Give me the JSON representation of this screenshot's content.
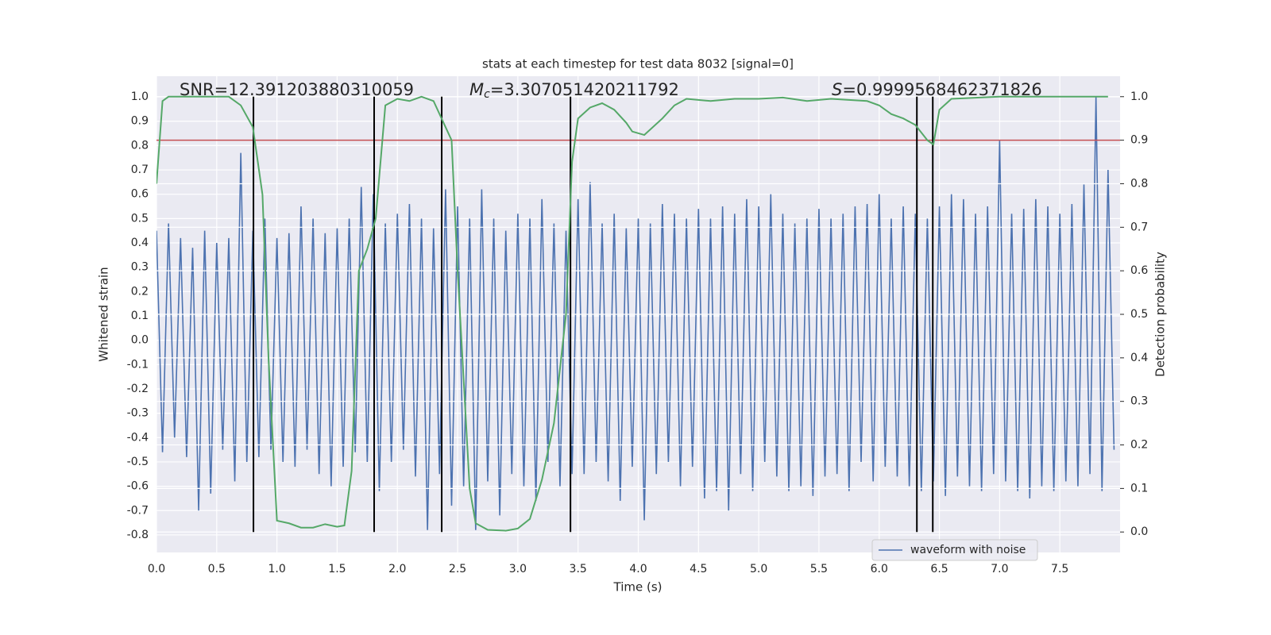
{
  "chart_data": {
    "type": "line",
    "title": "stats at each timestep for test data 8032 [signal=0]",
    "x_label": "Time (s)",
    "y_label": "Whitened strain",
    "y2_label": "Detection probability",
    "annotations": [
      {
        "text": "SNR=12.391203880310059"
      },
      {
        "symbol": "M",
        "subscript": "c",
        "text": "=3.307051420211792"
      },
      {
        "symbol": "S",
        "text": "=0.9999568462371826"
      }
    ],
    "grid": true,
    "legend": "lower right",
    "xlim": [
      0,
      8.0
    ],
    "ylim": [
      -0.872,
      1.085
    ],
    "y2lim": [
      -0.047,
      1.047
    ],
    "xticks": [
      {
        "value": 0,
        "label": "0.0"
      },
      0.5,
      {
        "value": 1,
        "label": "1.0"
      },
      1.5,
      {
        "value": 2,
        "label": "2.0"
      },
      2.5,
      {
        "value": 3,
        "label": "3.0"
      },
      3.5,
      {
        "value": 4,
        "label": "4.0"
      },
      4.5,
      {
        "value": 5,
        "label": "5.0"
      },
      5.5,
      {
        "value": 6,
        "label": "6.0"
      },
      6.5,
      {
        "value": 7,
        "label": "7.0"
      },
      7.5
    ],
    "yticks": [
      -0.8,
      -0.7,
      -0.6,
      -0.5,
      -0.4,
      -0.3,
      -0.2,
      -0.1,
      {
        "value": 0,
        "label": "0.0"
      },
      0.1,
      0.2,
      0.3,
      0.4,
      0.5,
      0.6,
      0.7,
      0.8,
      0.9,
      {
        "value": 1,
        "label": "1.0"
      }
    ],
    "y2ticks": [
      {
        "value": 0,
        "label": "0.0"
      },
      0.1,
      0.2,
      0.3,
      0.4,
      0.5,
      0.6,
      0.7,
      0.8,
      0.9,
      {
        "value": 1,
        "label": "1.0"
      }
    ],
    "series": [
      {
        "name": "waveform with noise",
        "color": "#4c72b0",
        "axis": "y",
        "x": [
          0,
          0.05,
          0.1,
          0.15,
          0.2,
          0.25,
          0.3,
          0.35,
          0.4,
          0.45,
          0.5,
          0.55,
          0.6,
          0.65,
          0.7,
          0.75,
          0.8,
          0.85,
          0.9,
          0.95,
          1,
          1.05,
          1.1,
          1.15,
          1.2,
          1.25,
          1.3,
          1.35,
          1.4,
          1.45,
          1.5,
          1.55,
          1.6,
          1.65,
          1.7,
          1.75,
          1.8,
          1.85,
          1.9,
          1.95,
          2,
          2.05,
          2.1,
          2.15,
          2.2,
          2.25,
          2.3,
          2.35,
          2.4,
          2.45,
          2.5,
          2.55,
          2.6,
          2.65,
          2.7,
          2.75,
          2.8,
          2.85,
          2.9,
          2.95,
          3,
          3.05,
          3.1,
          3.15,
          3.2,
          3.25,
          3.3,
          3.35,
          3.4,
          3.45,
          3.5,
          3.55,
          3.6,
          3.65,
          3.7,
          3.75,
          3.8,
          3.85,
          3.9,
          3.95,
          4,
          4.05,
          4.1,
          4.15,
          4.2,
          4.25,
          4.3,
          4.35,
          4.4,
          4.45,
          4.5,
          4.55,
          4.6,
          4.65,
          4.7,
          4.75,
          4.8,
          4.85,
          4.9,
          4.95,
          5,
          5.05,
          5.1,
          5.15,
          5.2,
          5.25,
          5.3,
          5.35,
          5.4,
          5.45,
          5.5,
          5.55,
          5.6,
          5.65,
          5.7,
          5.75,
          5.8,
          5.85,
          5.9,
          5.95,
          6,
          6.05,
          6.1,
          6.15,
          6.2,
          6.25,
          6.3,
          6.35,
          6.4,
          6.45,
          6.5,
          6.55,
          6.6,
          6.65,
          6.7,
          6.75,
          6.8,
          6.85,
          6.9,
          6.95,
          7,
          7.05,
          7.1,
          7.15,
          7.2,
          7.25,
          7.3,
          7.35,
          7.4,
          7.45,
          7.5,
          7.55,
          7.6,
          7.65,
          7.7,
          7.75,
          7.8,
          7.85,
          7.9,
          7.95
        ],
        "values": [
          0.45,
          -0.46,
          0.48,
          -0.4,
          0.42,
          -0.48,
          0.38,
          -0.7,
          0.45,
          -0.63,
          0.4,
          -0.45,
          0.42,
          -0.58,
          0.77,
          -0.5,
          0.45,
          -0.48,
          0.5,
          -0.45,
          0.42,
          -0.5,
          0.44,
          -0.52,
          0.55,
          -0.45,
          0.5,
          -0.55,
          0.44,
          -0.6,
          0.46,
          -0.52,
          0.5,
          -0.46,
          0.63,
          -0.5,
          0.6,
          -0.62,
          0.48,
          -0.5,
          0.52,
          -0.45,
          0.56,
          -0.56,
          0.5,
          -0.78,
          0.46,
          -0.55,
          0.62,
          -0.68,
          0.55,
          -0.6,
          0.5,
          -0.78,
          0.62,
          -0.58,
          0.5,
          -0.72,
          0.45,
          -0.55,
          0.52,
          -0.6,
          0.5,
          -0.66,
          0.58,
          -0.5,
          0.48,
          -0.6,
          0.45,
          -0.55,
          0.58,
          -0.55,
          0.65,
          -0.5,
          0.48,
          -0.58,
          0.52,
          -0.66,
          0.46,
          -0.52,
          0.5,
          -0.74,
          0.48,
          -0.55,
          0.56,
          -0.5,
          0.52,
          -0.6,
          0.5,
          -0.52,
          0.54,
          -0.65,
          0.5,
          -0.62,
          0.55,
          -0.7,
          0.52,
          -0.55,
          0.58,
          -0.62,
          0.55,
          -0.5,
          0.6,
          -0.56,
          0.52,
          -0.62,
          0.48,
          -0.6,
          0.5,
          -0.64,
          0.54,
          -0.56,
          0.5,
          -0.55,
          0.52,
          -0.62,
          0.55,
          -0.5,
          0.56,
          -0.58,
          0.6,
          -0.52,
          0.5,
          -0.56,
          0.55,
          -0.6,
          0.52,
          -0.62,
          0.5,
          -0.58,
          0.55,
          -0.64,
          0.6,
          -0.56,
          0.58,
          -0.6,
          0.52,
          -0.62,
          0.55,
          -0.55,
          0.82,
          -0.58,
          0.52,
          -0.62,
          0.54,
          -0.65,
          0.58,
          -0.6,
          0.55,
          -0.62,
          0.52,
          -0.58,
          0.56,
          -0.6,
          0.64,
          -0.55,
          1.0,
          -0.62,
          0.7,
          -0.45
        ]
      }
    ],
    "probability": {
      "color": "#55a868",
      "axis": "y2",
      "x": [
        0,
        0.05,
        0.1,
        0.2,
        0.3,
        0.4,
        0.5,
        0.6,
        0.7,
        0.8,
        0.88,
        0.93,
        1,
        1.1,
        1.2,
        1.3,
        1.4,
        1.5,
        1.56,
        1.62,
        1.68,
        1.75,
        1.82,
        1.9,
        2,
        2.1,
        2.2,
        2.3,
        2.4,
        2.45,
        2.5,
        2.6,
        2.65,
        2.75,
        2.9,
        3,
        3.1,
        3.2,
        3.3,
        3.4,
        3.45,
        3.5,
        3.6,
        3.7,
        3.8,
        3.9,
        3.95,
        4.05,
        4.2,
        4.3,
        4.4,
        4.6,
        4.8,
        5,
        5.2,
        5.4,
        5.6,
        5.9,
        6,
        6.1,
        6.2,
        6.3,
        6.4,
        6.45,
        6.5,
        6.6,
        7,
        7.9
      ],
      "values": [
        0.8,
        0.99,
        1.0,
        1.0,
        1.0,
        1.0,
        1.0,
        1.0,
        0.98,
        0.93,
        0.775,
        0.4,
        0.026,
        0.02,
        0.01,
        0.01,
        0.018,
        0.012,
        0.015,
        0.14,
        0.6,
        0.65,
        0.72,
        0.98,
        0.995,
        0.99,
        1.0,
        0.99,
        0.93,
        0.9,
        0.6,
        0.1,
        0.02,
        0.005,
        0.003,
        0.008,
        0.03,
        0.12,
        0.25,
        0.5,
        0.85,
        0.95,
        0.975,
        0.985,
        0.97,
        0.94,
        0.92,
        0.912,
        0.95,
        0.98,
        0.995,
        0.99,
        0.995,
        0.995,
        0.998,
        0.99,
        0.995,
        0.99,
        0.98,
        0.96,
        0.95,
        0.935,
        0.9,
        0.89,
        0.97,
        0.995,
        1.0,
        1.0
      ]
    },
    "threshold": {
      "value": 0.9,
      "axis": "y2",
      "color": "#c44e52"
    },
    "vlines": {
      "x": [
        0.805,
        1.807,
        2.368,
        3.437,
        6.313,
        6.445
      ],
      "ymin": 0,
      "ymax": 1,
      "axis": "y2",
      "color": "#000000"
    }
  }
}
